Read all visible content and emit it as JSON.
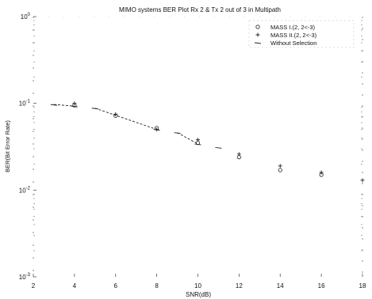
{
  "chart_data": {
    "type": "line",
    "title": "MIMO systems BER Plot Rx 2 & Tx 2 out of 3 in Multipath",
    "xlabel": "SNR(dB)",
    "ylabel": "BER(Bit Error Rate)",
    "xlim": [
      2,
      18
    ],
    "ylim": [
      0.001,
      1
    ],
    "yscale": "log",
    "xticks": [
      "2",
      "4",
      "6",
      "8",
      "10",
      "12",
      "14",
      "16",
      "18"
    ],
    "yticks": [
      {
        "base": "10",
        "exp": "0",
        "value": 1
      },
      {
        "base": "10",
        "exp": "-1",
        "value": 0.1
      },
      {
        "base": "10",
        "exp": "-2",
        "value": 0.01
      },
      {
        "base": "10",
        "exp": "-3",
        "value": 0.001
      }
    ],
    "grid": false,
    "legend_position": "top-right",
    "series": [
      {
        "name": "MASS I.(2, 2<-3)",
        "marker": "o",
        "color": "#222222",
        "x": [
          4,
          6,
          8,
          10,
          12,
          14,
          16
        ],
        "y": [
          0.095,
          0.072,
          0.052,
          0.035,
          0.024,
          0.017,
          0.015
        ]
      },
      {
        "name": "MASS II.(2, 2<-3)",
        "marker": "+",
        "color": "#222222",
        "x": [
          4,
          6,
          8,
          10,
          12,
          14,
          16,
          18
        ],
        "y": [
          0.1,
          0.075,
          0.05,
          0.038,
          0.026,
          0.019,
          0.016,
          0.013
        ]
      },
      {
        "name": "Without Selection",
        "marker": "-",
        "color": "#222222",
        "x": [
          3,
          4,
          5,
          8,
          9,
          10,
          11
        ],
        "y": [
          0.097,
          0.093,
          0.088,
          0.05,
          0.046,
          0.034,
          0.031
        ]
      }
    ]
  }
}
